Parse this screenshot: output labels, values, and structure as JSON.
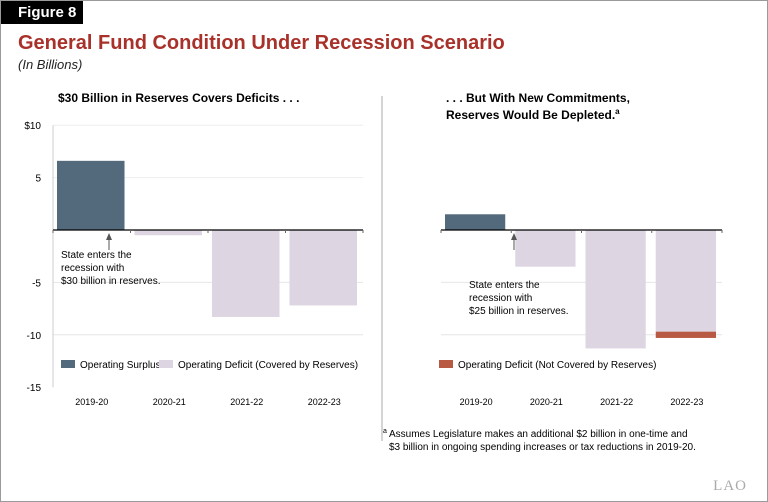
{
  "figure_label": "Figure 8",
  "title": "General Fund Condition Under Recession Scenario",
  "subtitle": "(In Billions)",
  "logo": "LAO",
  "colors": {
    "surplus": "#526a7b",
    "deficit_covered": "#ded5e3",
    "deficit_not_covered": "#b85a43",
    "title": "#a8312a"
  },
  "chart_data": [
    {
      "type": "bar",
      "title": "$30 Billion in Reserves Covers Deficits . . .",
      "categories": [
        "2019-20",
        "2020-21",
        "2021-22",
        "2022-23"
      ],
      "ylim": [
        -15,
        10
      ],
      "yticks": [
        10,
        5,
        0,
        -5,
        -10,
        -15
      ],
      "ytick_labels": [
        "$10",
        "5",
        "",
        "-5",
        "-10",
        "-15"
      ],
      "grid": true,
      "series": [
        {
          "name": "Operating Surplus",
          "values": [
            6.6,
            0,
            0,
            0
          ]
        },
        {
          "name": "Operating Deficit (Covered by Reserves)",
          "values": [
            0,
            -0.5,
            -8.3,
            -7.2
          ]
        }
      ],
      "annotation": [
        "State enters the",
        "recession with",
        "$30 billion in reserves."
      ],
      "legend": "bottom"
    },
    {
      "type": "bar",
      "title": ". . . But With New Commitments,",
      "title_line2": "Reserves Would Be Depleted.",
      "title_superscript": "a",
      "categories": [
        "2019-20",
        "2020-21",
        "2021-22",
        "2022-23"
      ],
      "ylim": [
        -15,
        10
      ],
      "grid": true,
      "series": [
        {
          "name": "Operating Surplus",
          "values": [
            1.5,
            0,
            0,
            0
          ]
        },
        {
          "name": "Operating Deficit (Covered by Reserves)",
          "values": [
            0,
            -3.5,
            -11.3,
            -9.7
          ]
        },
        {
          "name": "Operating Deficit (Not Covered by Reserves)",
          "values": [
            0,
            0,
            0,
            -0.6
          ]
        }
      ],
      "annotation": [
        "State enters the",
        "recession with",
        "$25 billion in reserves."
      ],
      "legend": "bottom",
      "footnote_marker": "a",
      "footnote": [
        "Assumes Legislature makes an additional $2 billion in one-time and",
        "$3 billion in ongoing spending increases or tax reductions in 2019-20."
      ]
    }
  ]
}
